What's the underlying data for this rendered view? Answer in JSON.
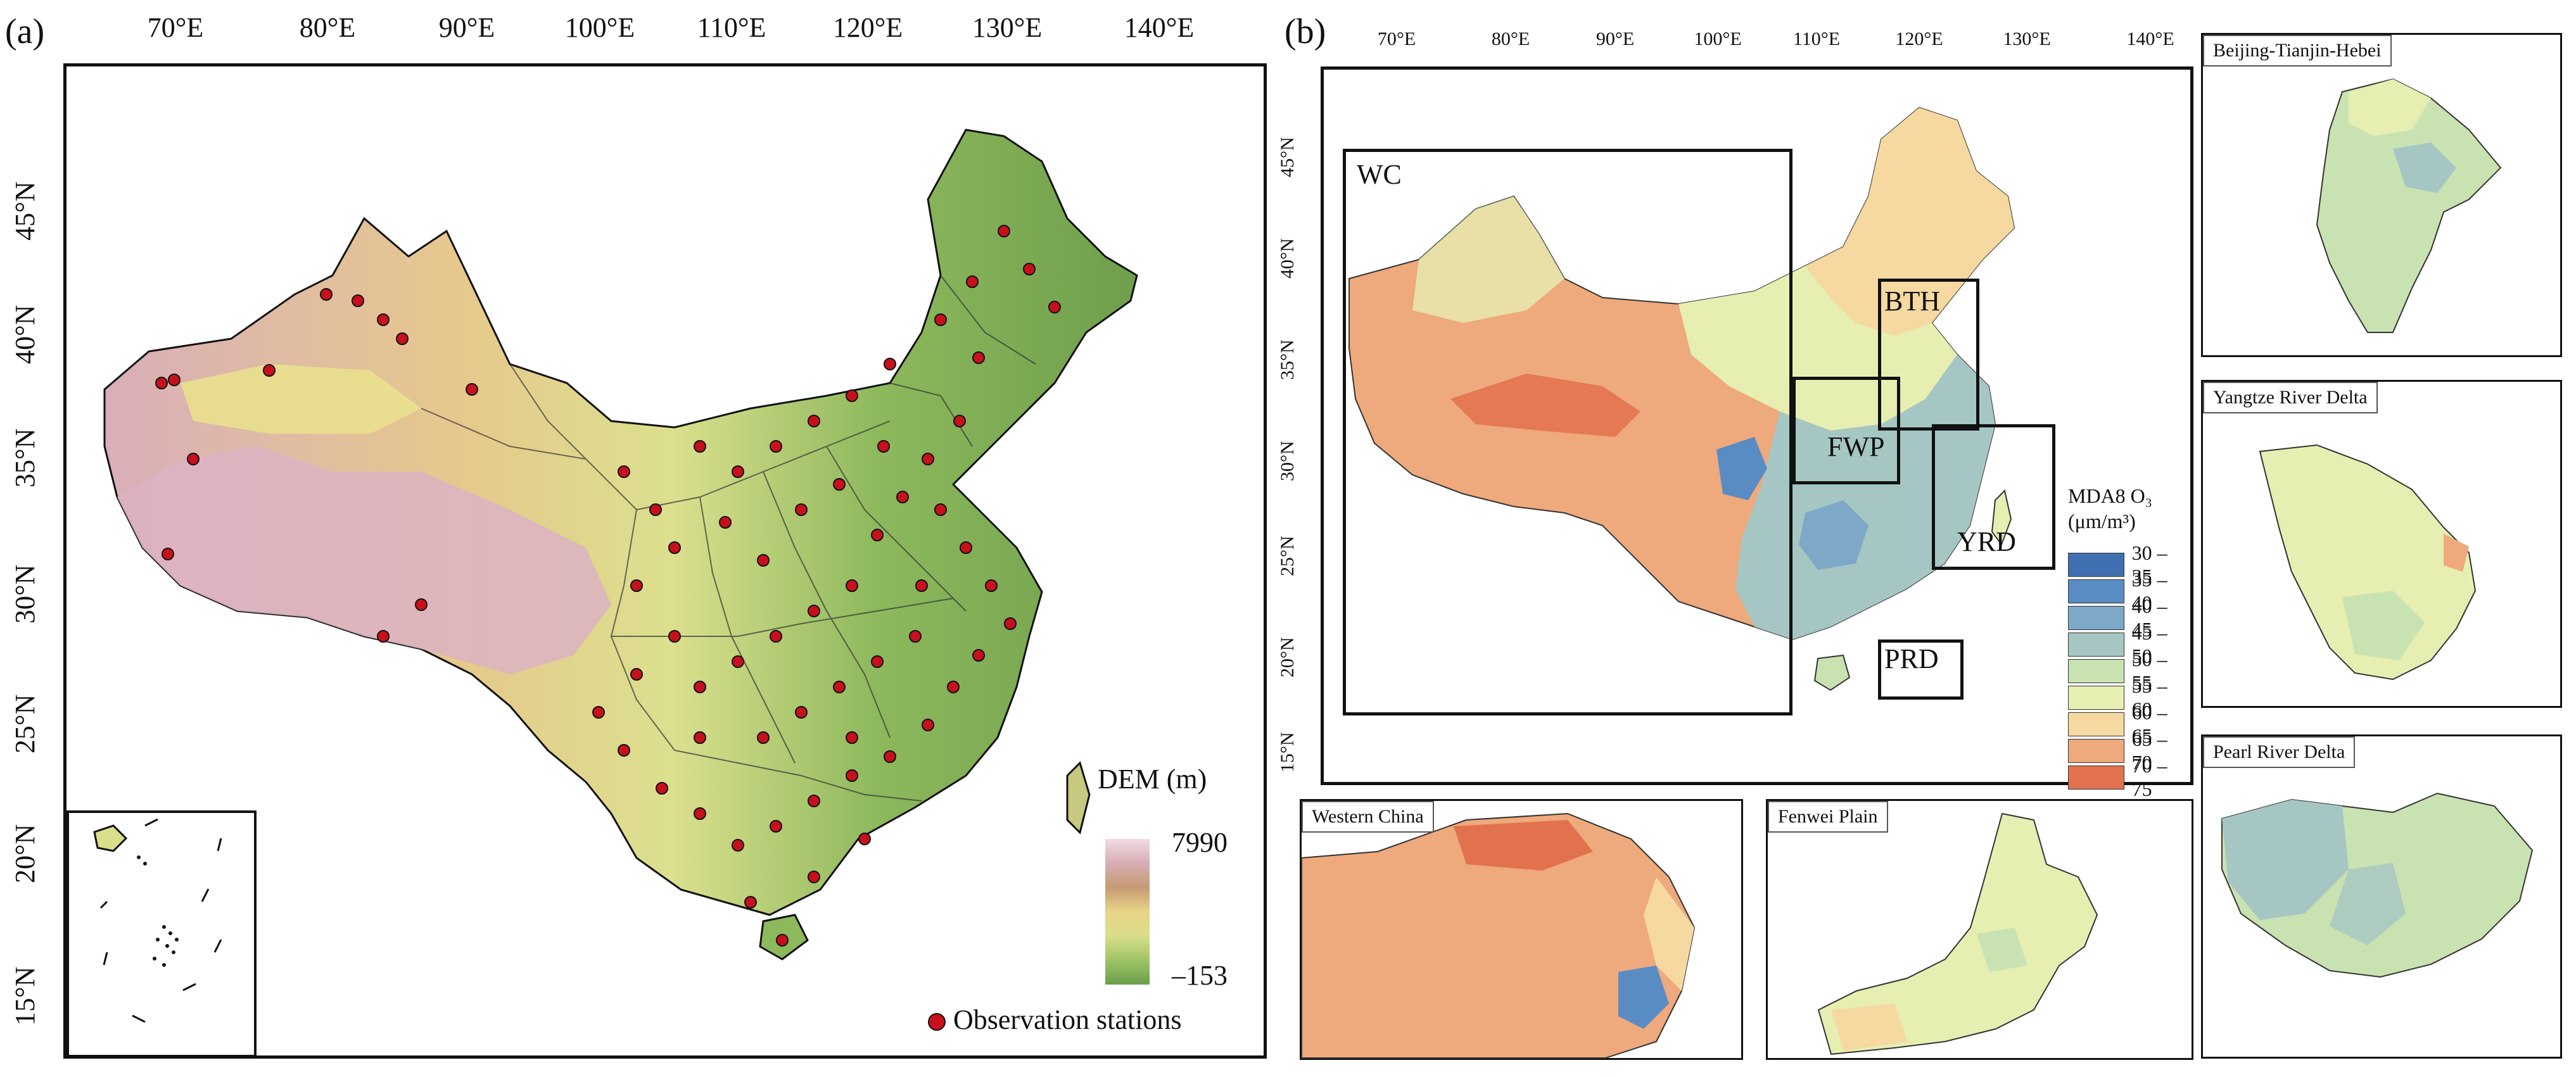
{
  "panel_a": {
    "label": "(a)",
    "lon_ticks": [
      "70°E",
      "80°E",
      "90°E",
      "100°E",
      "110°E",
      "120°E",
      "130°E",
      "140°E"
    ],
    "lat_ticks": [
      "45°N",
      "40°N",
      "35°N",
      "30°N",
      "25°N",
      "20°N",
      "15°N"
    ],
    "dem_legend": {
      "title": "DEM (m)",
      "max": "7990",
      "min": "–153",
      "colors": [
        "#f2dbe6",
        "#d8aeb4",
        "#c79a74",
        "#e9d487",
        "#d8de8a",
        "#9fc466",
        "#6b9e4a"
      ]
    },
    "stations_legend": "Observation stations",
    "station_color": "#c8101c"
  },
  "panel_b": {
    "label": "(b)",
    "lon_ticks": [
      "70°E",
      "80°E",
      "90°E",
      "100°E",
      "110°E",
      "120°E",
      "130°E",
      "140°E"
    ],
    "lat_ticks": [
      "45°N",
      "40°N",
      "35°N",
      "30°N",
      "25°N",
      "20°N",
      "15°N"
    ],
    "regions": [
      {
        "label": "WC"
      },
      {
        "label": "BTH"
      },
      {
        "label": "FWP"
      },
      {
        "label": "YRD"
      },
      {
        "label": "PRD"
      }
    ],
    "legend": {
      "title": "MDA8 O₃",
      "unit": "(μm/m³)",
      "items": [
        {
          "range": "30 – 35",
          "color": "#3f6fb0"
        },
        {
          "range": "35 – 40",
          "color": "#5a8cc4"
        },
        {
          "range": "40 – 45",
          "color": "#7ea8c8"
        },
        {
          "range": "45 – 50",
          "color": "#a6c6c3"
        },
        {
          "range": "50 – 55",
          "color": "#c9e2b1"
        },
        {
          "range": "55 – 60",
          "color": "#e6eeb2"
        },
        {
          "range": "60 – 65",
          "color": "#f5d9a0"
        },
        {
          "range": "65 – 70",
          "color": "#eea97c"
        },
        {
          "range": "70 – 75",
          "color": "#e2714e"
        }
      ]
    },
    "insets": {
      "bth": "Beijing-Tianjin-Hebei",
      "yrd": "Yangtze River Delta",
      "prd": "Pearl River Delta",
      "wc": "Western China",
      "fwp": "Fenwei Plain"
    }
  }
}
